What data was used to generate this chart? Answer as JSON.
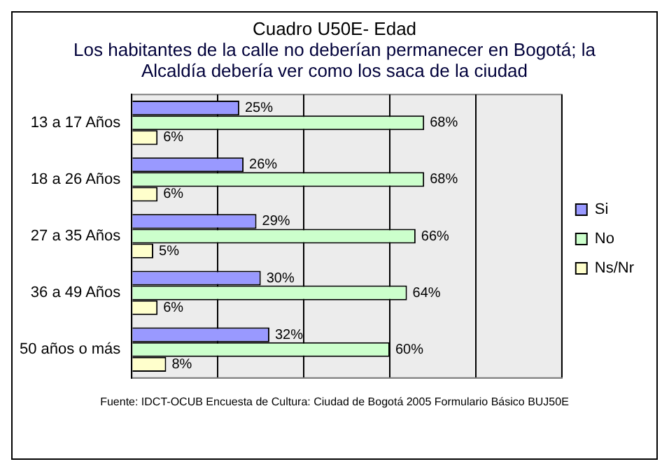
{
  "chart_data": {
    "type": "bar",
    "orientation": "horizontal",
    "title": "Cuadro U50E- Edad",
    "subtitle": "Los habitantes de la calle no deberían permanecer en Bogotá; la Alcaldía debería ver como los saca de la ciudad",
    "categories": [
      "13 a 17 Años",
      "18 a 26 Años",
      "27 a 35 Años",
      "36 a 49 Años",
      "50 años o más"
    ],
    "series": [
      {
        "name": "Si",
        "color": "#9999ff",
        "values": [
          25,
          26,
          29,
          30,
          32
        ],
        "value_labels": [
          "25%",
          "26%",
          "29%",
          "30%",
          "32%"
        ]
      },
      {
        "name": "No",
        "color": "#ccffcc",
        "values": [
          68,
          68,
          66,
          64,
          60
        ],
        "value_labels": [
          "68%",
          "68%",
          "66%",
          "64%",
          "60%"
        ]
      },
      {
        "name": "Ns/Nr",
        "color": "#ffffcc",
        "values": [
          6,
          6,
          5,
          6,
          8
        ],
        "value_labels": [
          "6%",
          "6%",
          "5%",
          "6%",
          "8%"
        ]
      }
    ],
    "xlim": [
      0,
      100
    ],
    "xticks": [
      {
        "value": 0,
        "label": null
      },
      {
        "value": 20,
        "label": null
      },
      {
        "value": 40,
        "label": null
      },
      {
        "value": 60,
        "label": null
      },
      {
        "value": 80,
        "label": null
      },
      {
        "value": 100,
        "label": null
      }
    ],
    "tick_labels": "y",
    "grid": "x",
    "legend": "right",
    "annotations": [
      "Fuente: IDCT-OCUB Encuesta de Cultura: Ciudad de Bogotá 2005 Formulario Básico BUJ50E"
    ]
  }
}
